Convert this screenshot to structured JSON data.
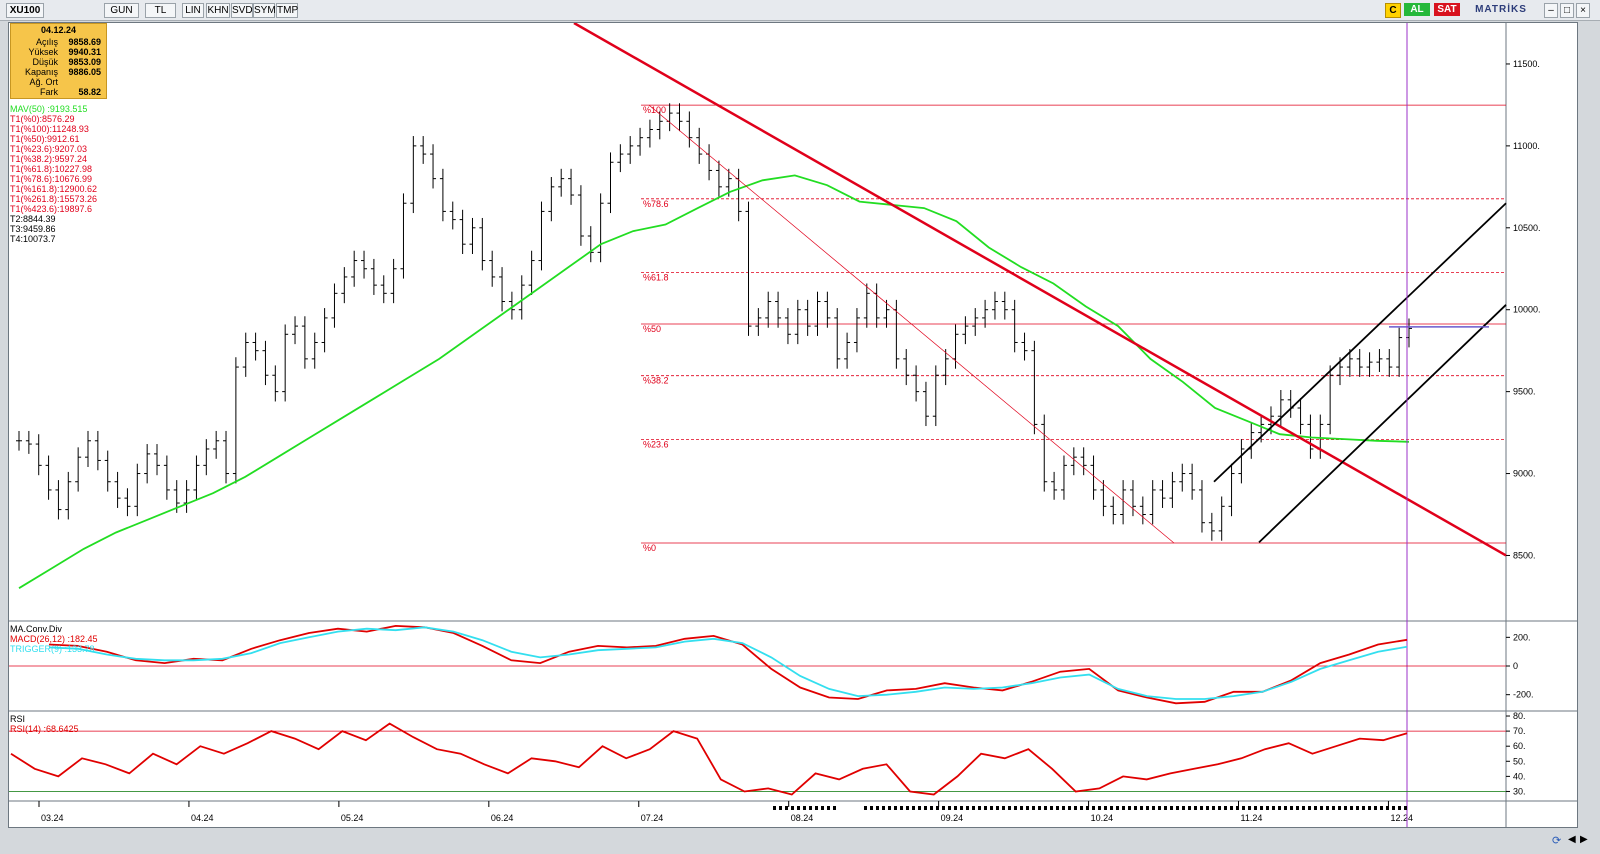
{
  "toolbar": {
    "symbol": "XU100",
    "buttons": [
      "GUN",
      "TL",
      "LIN",
      "KHN",
      "SVD",
      "SYM",
      "TMP"
    ],
    "right_buttons": [
      "C",
      "AL",
      "SAT"
    ],
    "brand": "MATRİKS"
  },
  "info_box": {
    "date": "04.12.24",
    "rows": [
      {
        "label": "Açılış",
        "value": "9858.69"
      },
      {
        "label": "Yüksek",
        "value": "9940.31"
      },
      {
        "label": "Düşük",
        "value": "9853.09"
      },
      {
        "label": "Kapanış",
        "value": "9886.05"
      },
      {
        "label": "Ağ. Ort",
        "value": ""
      },
      {
        "label": "Fark",
        "value": "58.82"
      }
    ]
  },
  "indicators": {
    "mav": "MAV(50)   :9193.515",
    "fib": [
      "T1(%0):8576.29",
      "T1(%100):11248.93",
      "T1(%50):9912.61",
      "T1(%23.6):9207.03",
      "T1(%38.2):9597.24",
      "T1(%61.8):10227.98",
      "T1(%78.6):10676.99",
      "T1(%161.8):12900.62",
      "T1(%261.8):15573.26",
      "T1(%423.6):19897.6",
      "T2:8844.39",
      "T3:9459.86",
      "T4:10073.7"
    ],
    "macd_title": "MA.Conv.Div",
    "macd_label": "MACD(26,12)   :182.45",
    "trigger_label": "TRIGGER(9)   :133.78",
    "rsi_title": "RSI",
    "rsi_label": "RSI(14)   :68.6425"
  },
  "colors": {
    "accent_red": "#e0001b",
    "ma_green": "#22dd22",
    "macd_red": "#e00000",
    "trigger_cyan": "#33dfef",
    "cursor_purple": "#9b30c9"
  },
  "chart_data": [
    {
      "type": "line",
      "title": "XU100",
      "x_tick_labels": [
        "03.24",
        "04.24",
        "05.24",
        "06.24",
        "07.24",
        "08.24",
        "09.24",
        "10.24",
        "11.24",
        "12.24"
      ],
      "y_tick_labels": [
        "8500.",
        "9000.",
        "9500.",
        "10000.",
        "10500.",
        "11000.",
        "11500."
      ],
      "ylim": [
        8100,
        11750
      ],
      "fib_levels": [
        {
          "label": "%100",
          "value": 11248.93
        },
        {
          "label": "%78.6",
          "value": 10676.99
        },
        {
          "label": "%61.8",
          "value": 10227.98
        },
        {
          "label": "%50",
          "value": 9912.61
        },
        {
          "label": "%38.2",
          "value": 9597.24
        },
        {
          "label": "%23.6",
          "value": 9207.03
        },
        {
          "label": "%0",
          "value": 8576.29
        }
      ],
      "series": [
        {
          "name": "XU100 Close",
          "values": [
            9200,
            9180,
            9050,
            8900,
            8780,
            8950,
            9100,
            9200,
            9080,
            8950,
            8850,
            8800,
            9000,
            9120,
            9050,
            8900,
            8820,
            8900,
            9050,
            9150,
            9200,
            9000,
            9650,
            9800,
            9750,
            9600,
            9500,
            9850,
            9900,
            9700,
            9800,
            9950,
            10100,
            10200,
            10300,
            10250,
            10150,
            10100,
            10250,
            10650,
            11000,
            10950,
            10800,
            10600,
            10550,
            10400,
            10500,
            10300,
            10200,
            10050,
            10000,
            10150,
            10300,
            10600,
            10750,
            10800,
            10700,
            10450,
            10350,
            10650,
            10900,
            10950,
            11000,
            11050,
            11100,
            11150,
            11200,
            11150,
            11050,
            10950,
            10850,
            10750,
            10800,
            10600,
            9900,
            9950,
            10050,
            9950,
            9850,
            10000,
            9900,
            10050,
            9950,
            9700,
            9800,
            9950,
            10100,
            9950,
            10000,
            9700,
            9600,
            9500,
            9350,
            9600,
            9700,
            9850,
            9900,
            9950,
            10000,
            10050,
            10000,
            9800,
            9750,
            9300,
            8950,
            8900,
            9050,
            9100,
            9050,
            8900,
            8800,
            8750,
            8900,
            8800,
            8750,
            8900,
            8850,
            8950,
            9000,
            8900,
            8700,
            8650,
            8800,
            9000,
            9150,
            9250,
            9300,
            9350,
            9450,
            9400,
            9300,
            9150,
            9300,
            9600,
            9650,
            9700,
            9650,
            9680,
            9700,
            9650,
            9830,
            9886
          ]
        },
        {
          "name": "MAV(50)",
          "values": [
            8300,
            8420,
            8540,
            8640,
            8720,
            8800,
            8880,
            8980,
            9100,
            9220,
            9340,
            9460,
            9580,
            9700,
            9840,
            9980,
            10120,
            10260,
            10400,
            10480,
            10520,
            10620,
            10720,
            10790,
            10820,
            10760,
            10660,
            10640,
            10620,
            10540,
            10380,
            10260,
            10160,
            10020,
            9900,
            9700,
            9560,
            9400,
            9320,
            9240,
            9220,
            9210,
            9200,
            9193.515
          ]
        }
      ]
    },
    {
      "type": "line",
      "title": "MA.Conv.Div",
      "y_tick_labels": [
        "200.",
        "0",
        "-200."
      ],
      "ylim": [
        -300,
        300
      ],
      "series": [
        {
          "name": "MACD(26,12)",
          "values": [
            150,
            140,
            100,
            40,
            20,
            50,
            40,
            120,
            180,
            230,
            260,
            240,
            280,
            270,
            230,
            140,
            40,
            20,
            100,
            140,
            130,
            140,
            190,
            210,
            150,
            -20,
            -150,
            -220,
            -230,
            -170,
            -160,
            -120,
            -150,
            -170,
            -110,
            -40,
            -20,
            -170,
            -220,
            -260,
            -250,
            -180,
            -180,
            -100,
            20,
            80,
            150,
            182.45
          ]
        },
        {
          "name": "TRIGGER(9)",
          "values": [
            130,
            120,
            80,
            50,
            40,
            40,
            50,
            90,
            160,
            200,
            240,
            260,
            250,
            270,
            240,
            180,
            100,
            60,
            80,
            110,
            120,
            130,
            170,
            190,
            160,
            60,
            -70,
            -160,
            -210,
            -200,
            -180,
            -150,
            -160,
            -150,
            -120,
            -80,
            -60,
            -160,
            -210,
            -230,
            -230,
            -210,
            -180,
            -110,
            -20,
            40,
            100,
            133.78
          ]
        }
      ]
    },
    {
      "type": "line",
      "title": "RSI",
      "y_tick_labels": [
        "80.",
        "70.",
        "60.",
        "50.",
        "40.",
        "30."
      ],
      "ylim": [
        25,
        82
      ],
      "series": [
        {
          "name": "RSI(14)",
          "values": [
            55,
            45,
            40,
            52,
            48,
            42,
            55,
            48,
            60,
            55,
            62,
            70,
            65,
            58,
            70,
            64,
            75,
            66,
            58,
            55,
            48,
            42,
            52,
            50,
            46,
            60,
            52,
            58,
            70,
            65,
            38,
            30,
            32,
            28,
            42,
            38,
            45,
            48,
            30,
            28,
            40,
            55,
            52,
            58,
            45,
            30,
            32,
            40,
            38,
            42,
            45,
            48,
            52,
            58,
            62,
            55,
            60,
            65,
            64,
            68.6425
          ]
        }
      ]
    }
  ]
}
